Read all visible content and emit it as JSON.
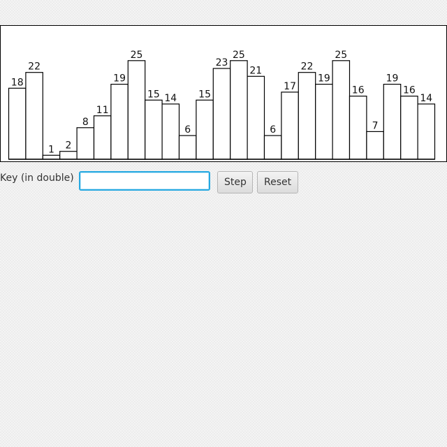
{
  "chart_data": {
    "type": "bar",
    "values": [
      18,
      22,
      1,
      2,
      8,
      11,
      19,
      25,
      15,
      14,
      6,
      15,
      23,
      25,
      21,
      6,
      17,
      22,
      19,
      25,
      16,
      7,
      19,
      16,
      14
    ],
    "ylim": [
      0,
      25
    ],
    "labels_on_bars": true,
    "grid": false,
    "bar_fill": "#ffffff",
    "bar_stroke": "#000000"
  },
  "controls": {
    "key_label": "Key (in double)",
    "key_value": "",
    "step_label": "Step",
    "reset_label": "Reset"
  },
  "colors": {
    "input_focus_border": "#27a9e1",
    "button_border": "#b5b5b5"
  }
}
